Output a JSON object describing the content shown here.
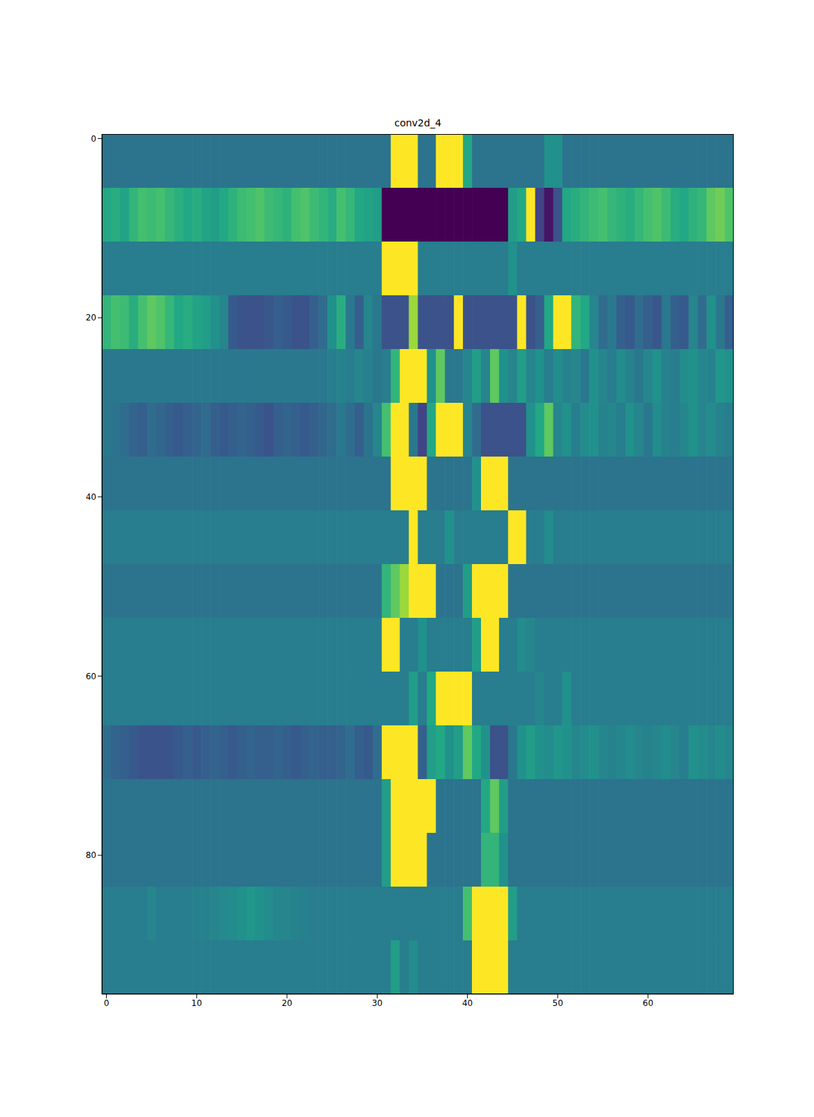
{
  "chart_data": {
    "type": "heatmap",
    "title": "conv2d_4",
    "color": "viridis",
    "xlim": [
      -0.5,
      69.5
    ],
    "ylim": [
      95.5,
      -0.5
    ],
    "xticks": [
      0,
      10,
      20,
      30,
      40,
      50,
      60
    ],
    "yticks": [
      0,
      20,
      40,
      60,
      80
    ],
    "x": [
      0,
      1,
      2,
      3,
      4,
      5,
      6,
      7,
      8,
      9,
      10,
      11,
      12,
      13,
      14,
      15,
      16,
      17,
      18,
      19,
      20,
      21,
      22,
      23,
      24,
      25,
      26,
      27,
      28,
      29,
      30,
      31,
      32,
      33,
      34,
      35,
      36,
      37,
      38,
      39,
      40,
      41,
      42,
      43,
      44,
      45,
      46,
      47,
      48,
      49,
      50,
      51,
      52,
      53,
      54,
      55,
      56,
      57,
      58,
      59,
      60,
      61,
      62,
      63,
      64,
      65,
      66,
      67,
      68,
      69
    ],
    "row_edges": [
      -0.5,
      5.5,
      11.5,
      17.5,
      23.5,
      29.5,
      35.5,
      41.5,
      47.5,
      53.5,
      59.5,
      65.5,
      71.5,
      77.5,
      83.5,
      89.5,
      95.5
    ],
    "cells": [
      [
        0.38,
        0.38,
        0.38,
        0.38,
        0.38,
        0.38,
        0.38,
        0.38,
        0.38,
        0.38,
        0.38,
        0.38,
        0.38,
        0.38,
        0.38,
        0.38,
        0.38,
        0.38,
        0.38,
        0.38,
        0.38,
        0.38,
        0.38,
        0.38,
        0.38,
        0.38,
        0.38,
        0.38,
        0.38,
        0.38,
        0.38,
        0.38,
        1,
        1,
        1,
        0.38,
        0.38,
        1,
        1,
        1,
        0.6,
        0.38,
        0.38,
        0.38,
        0.38,
        0.38,
        0.38,
        0.38,
        0.38,
        0.5,
        0.5,
        0.38,
        0.38,
        0.38,
        0.38,
        0.38,
        0.38,
        0.38,
        0.38,
        0.38,
        0.38,
        0.38,
        0.38,
        0.38,
        0.38,
        0.38,
        0.38,
        0.38,
        0.38,
        0.38
      ],
      [
        0.6,
        0.62,
        0.58,
        0.65,
        0.7,
        0.68,
        0.7,
        0.66,
        0.63,
        0.6,
        0.62,
        0.58,
        0.55,
        0.6,
        0.64,
        0.68,
        0.7,
        0.72,
        0.68,
        0.66,
        0.64,
        0.7,
        0.72,
        0.68,
        0.65,
        0.62,
        0.7,
        0.66,
        0.6,
        0.58,
        0.55,
        0,
        0,
        0,
        0,
        0,
        0,
        0,
        0,
        0,
        0,
        0,
        0,
        0,
        0,
        0.55,
        0.6,
        1,
        0.2,
        0.05,
        0.25,
        0.6,
        0.62,
        0.65,
        0.68,
        0.7,
        0.66,
        0.64,
        0.62,
        0.66,
        0.7,
        0.72,
        0.68,
        0.62,
        0.6,
        0.64,
        0.66,
        0.75,
        0.78,
        0.72
      ],
      [
        0.42,
        0.42,
        0.42,
        0.42,
        0.42,
        0.42,
        0.42,
        0.42,
        0.42,
        0.42,
        0.42,
        0.42,
        0.42,
        0.42,
        0.42,
        0.42,
        0.42,
        0.42,
        0.42,
        0.42,
        0.42,
        0.42,
        0.42,
        0.42,
        0.42,
        0.42,
        0.42,
        0.42,
        0.42,
        0.42,
        0.42,
        1,
        1,
        1,
        1,
        0.42,
        0.42,
        0.42,
        0.42,
        0.42,
        0.42,
        0.42,
        0.42,
        0.42,
        0.42,
        0.5,
        0.42,
        0.42,
        0.42,
        0.42,
        0.42,
        0.42,
        0.42,
        0.42,
        0.42,
        0.42,
        0.42,
        0.42,
        0.42,
        0.42,
        0.42,
        0.42,
        0.42,
        0.42,
        0.42,
        0.42,
        0.42,
        0.42,
        0.42,
        0.42
      ],
      [
        0.65,
        0.7,
        0.68,
        0.62,
        0.7,
        0.75,
        0.72,
        0.66,
        0.6,
        0.62,
        0.58,
        0.55,
        0.5,
        0.45,
        0.28,
        0.26,
        0.25,
        0.25,
        0.27,
        0.3,
        0.28,
        0.26,
        0.25,
        0.3,
        0.35,
        0.5,
        0.62,
        0.4,
        0.3,
        0.45,
        0.4,
        0.25,
        0.25,
        0.25,
        0.85,
        0.25,
        0.25,
        0.25,
        0.25,
        1,
        0.25,
        0.25,
        0.25,
        0.25,
        0.25,
        0.25,
        1,
        0.25,
        0.3,
        0.6,
        1,
        1,
        0.65,
        0.6,
        0.45,
        0.35,
        0.4,
        0.3,
        0.28,
        0.35,
        0.3,
        0.27,
        0.4,
        0.3,
        0.28,
        0.45,
        0.35,
        0.5,
        0.4,
        0.3
      ],
      [
        0.4,
        0.4,
        0.4,
        0.4,
        0.4,
        0.4,
        0.4,
        0.4,
        0.4,
        0.4,
        0.4,
        0.4,
        0.4,
        0.4,
        0.4,
        0.4,
        0.4,
        0.4,
        0.4,
        0.4,
        0.4,
        0.4,
        0.4,
        0.4,
        0.4,
        0.42,
        0.44,
        0.42,
        0.45,
        0.43,
        0.4,
        0.42,
        0.65,
        1,
        1,
        1,
        0.5,
        0.75,
        0.4,
        0.4,
        0.45,
        0.55,
        0.45,
        0.75,
        0.5,
        0.45,
        0.55,
        0.45,
        0.5,
        0.42,
        0.48,
        0.44,
        0.46,
        0.4,
        0.5,
        0.45,
        0.42,
        0.48,
        0.44,
        0.4,
        0.46,
        0.5,
        0.44,
        0.42,
        0.48,
        0.5,
        0.46,
        0.44,
        0.52,
        0.5
      ],
      [
        0.4,
        0.38,
        0.35,
        0.32,
        0.3,
        0.35,
        0.33,
        0.3,
        0.28,
        0.3,
        0.32,
        0.35,
        0.3,
        0.28,
        0.3,
        0.32,
        0.3,
        0.28,
        0.26,
        0.3,
        0.32,
        0.3,
        0.28,
        0.3,
        0.33,
        0.35,
        0.4,
        0.35,
        0.3,
        0.38,
        0.45,
        0.7,
        1,
        1,
        0.4,
        0.2,
        0.6,
        1,
        1,
        1,
        0.45,
        0.35,
        0.25,
        0.25,
        0.25,
        0.25,
        0.25,
        0.5,
        0.6,
        0.75,
        0.45,
        0.5,
        0.42,
        0.48,
        0.5,
        0.44,
        0.46,
        0.42,
        0.5,
        0.45,
        0.4,
        0.48,
        0.44,
        0.42,
        0.46,
        0.5,
        0.45,
        0.48,
        0.44,
        0.42
      ],
      [
        0.38,
        0.38,
        0.38,
        0.38,
        0.38,
        0.38,
        0.38,
        0.38,
        0.38,
        0.38,
        0.38,
        0.38,
        0.38,
        0.38,
        0.38,
        0.38,
        0.38,
        0.38,
        0.38,
        0.38,
        0.38,
        0.38,
        0.38,
        0.38,
        0.38,
        0.38,
        0.38,
        0.38,
        0.38,
        0.38,
        0.38,
        0.38,
        1,
        1,
        1,
        1,
        0.38,
        0.38,
        0.38,
        0.38,
        0.38,
        0.5,
        1,
        1,
        1,
        0.38,
        0.38,
        0.38,
        0.38,
        0.38,
        0.38,
        0.38,
        0.38,
        0.38,
        0.38,
        0.38,
        0.38,
        0.38,
        0.38,
        0.38,
        0.38,
        0.38,
        0.38,
        0.38,
        0.38,
        0.38,
        0.38,
        0.38,
        0.38,
        0.38
      ],
      [
        0.42,
        0.42,
        0.42,
        0.42,
        0.42,
        0.42,
        0.42,
        0.42,
        0.42,
        0.42,
        0.42,
        0.42,
        0.42,
        0.42,
        0.42,
        0.42,
        0.42,
        0.42,
        0.42,
        0.42,
        0.42,
        0.42,
        0.42,
        0.42,
        0.42,
        0.42,
        0.42,
        0.42,
        0.42,
        0.42,
        0.42,
        0.42,
        0.42,
        0.42,
        1,
        0.42,
        0.42,
        0.42,
        0.5,
        0.42,
        0.42,
        0.42,
        0.42,
        0.42,
        0.42,
        1,
        1,
        0.42,
        0.42,
        0.48,
        0.42,
        0.42,
        0.42,
        0.42,
        0.42,
        0.42,
        0.42,
        0.42,
        0.42,
        0.42,
        0.42,
        0.42,
        0.42,
        0.42,
        0.42,
        0.42,
        0.42,
        0.42,
        0.42,
        0.42
      ],
      [
        0.38,
        0.38,
        0.38,
        0.38,
        0.38,
        0.38,
        0.38,
        0.38,
        0.38,
        0.38,
        0.38,
        0.38,
        0.38,
        0.38,
        0.38,
        0.38,
        0.38,
        0.38,
        0.38,
        0.38,
        0.38,
        0.38,
        0.38,
        0.38,
        0.38,
        0.38,
        0.38,
        0.38,
        0.38,
        0.38,
        0.38,
        0.65,
        0.75,
        0.85,
        1,
        1,
        1,
        0.38,
        0.38,
        0.38,
        0.55,
        1,
        1,
        1,
        1,
        0.38,
        0.38,
        0.38,
        0.38,
        0.38,
        0.38,
        0.38,
        0.38,
        0.38,
        0.38,
        0.38,
        0.38,
        0.38,
        0.38,
        0.38,
        0.38,
        0.38,
        0.38,
        0.38,
        0.38,
        0.38,
        0.38,
        0.38,
        0.38,
        0.38
      ],
      [
        0.42,
        0.42,
        0.42,
        0.42,
        0.42,
        0.42,
        0.42,
        0.42,
        0.42,
        0.42,
        0.42,
        0.42,
        0.42,
        0.42,
        0.42,
        0.42,
        0.42,
        0.42,
        0.42,
        0.42,
        0.42,
        0.42,
        0.42,
        0.42,
        0.42,
        0.42,
        0.42,
        0.42,
        0.42,
        0.42,
        0.42,
        1,
        1,
        0.42,
        0.42,
        0.5,
        0.42,
        0.42,
        0.42,
        0.42,
        0.42,
        0.55,
        1,
        1,
        0.42,
        0.42,
        0.48,
        0.45,
        0.42,
        0.42,
        0.42,
        0.42,
        0.42,
        0.42,
        0.42,
        0.42,
        0.42,
        0.42,
        0.42,
        0.42,
        0.42,
        0.42,
        0.42,
        0.42,
        0.42,
        0.42,
        0.42,
        0.42,
        0.42,
        0.42
      ],
      [
        0.42,
        0.42,
        0.42,
        0.42,
        0.42,
        0.42,
        0.42,
        0.42,
        0.42,
        0.42,
        0.42,
        0.42,
        0.42,
        0.42,
        0.42,
        0.42,
        0.42,
        0.42,
        0.42,
        0.42,
        0.42,
        0.42,
        0.42,
        0.42,
        0.42,
        0.42,
        0.42,
        0.42,
        0.42,
        0.42,
        0.42,
        0.42,
        0.42,
        0.42,
        0.55,
        0.42,
        0.6,
        1,
        1,
        1,
        1,
        0.42,
        0.42,
        0.42,
        0.42,
        0.42,
        0.42,
        0.42,
        0.46,
        0.42,
        0.42,
        0.5,
        0.42,
        0.42,
        0.42,
        0.42,
        0.42,
        0.42,
        0.42,
        0.42,
        0.42,
        0.42,
        0.42,
        0.42,
        0.42,
        0.42,
        0.42,
        0.42,
        0.42,
        0.42
      ],
      [
        0.35,
        0.32,
        0.3,
        0.28,
        0.26,
        0.25,
        0.25,
        0.26,
        0.28,
        0.3,
        0.28,
        0.3,
        0.32,
        0.3,
        0.28,
        0.3,
        0.32,
        0.3,
        0.3,
        0.32,
        0.3,
        0.28,
        0.3,
        0.32,
        0.3,
        0.3,
        0.32,
        0.35,
        0.3,
        0.28,
        0.35,
        1,
        1,
        1,
        1,
        0.3,
        0.55,
        0.6,
        0.5,
        0.55,
        0.75,
        0.6,
        0.5,
        0.25,
        0.25,
        0.4,
        0.5,
        0.55,
        0.5,
        0.48,
        0.52,
        0.5,
        0.46,
        0.48,
        0.5,
        0.46,
        0.44,
        0.46,
        0.48,
        0.45,
        0.44,
        0.46,
        0.48,
        0.45,
        0.42,
        0.5,
        0.48,
        0.46,
        0.48,
        0.45
      ],
      [
        0.38,
        0.38,
        0.38,
        0.38,
        0.38,
        0.38,
        0.38,
        0.38,
        0.38,
        0.38,
        0.38,
        0.38,
        0.38,
        0.38,
        0.38,
        0.38,
        0.38,
        0.38,
        0.38,
        0.38,
        0.38,
        0.38,
        0.38,
        0.38,
        0.38,
        0.38,
        0.38,
        0.38,
        0.38,
        0.38,
        0.38,
        0.55,
        1,
        1,
        1,
        1,
        1,
        0.38,
        0.38,
        0.38,
        0.38,
        0.38,
        0.6,
        0.75,
        0.55,
        0.38,
        0.38,
        0.38,
        0.38,
        0.38,
        0.38,
        0.38,
        0.38,
        0.38,
        0.38,
        0.38,
        0.38,
        0.38,
        0.38,
        0.38,
        0.38,
        0.38,
        0.38,
        0.38,
        0.38,
        0.38,
        0.38,
        0.38,
        0.38,
        0.38
      ],
      [
        0.38,
        0.38,
        0.38,
        0.38,
        0.38,
        0.38,
        0.38,
        0.38,
        0.38,
        0.38,
        0.38,
        0.38,
        0.38,
        0.38,
        0.38,
        0.38,
        0.38,
        0.38,
        0.38,
        0.38,
        0.38,
        0.38,
        0.38,
        0.38,
        0.38,
        0.38,
        0.38,
        0.38,
        0.38,
        0.38,
        0.38,
        0.55,
        1,
        1,
        1,
        1,
        0.38,
        0.38,
        0.38,
        0.38,
        0.38,
        0.38,
        0.65,
        0.65,
        0.5,
        0.38,
        0.38,
        0.38,
        0.38,
        0.38,
        0.38,
        0.38,
        0.38,
        0.38,
        0.38,
        0.38,
        0.38,
        0.38,
        0.38,
        0.38,
        0.38,
        0.38,
        0.38,
        0.38,
        0.38,
        0.38,
        0.38,
        0.38,
        0.38,
        0.38
      ],
      [
        0.42,
        0.42,
        0.42,
        0.42,
        0.42,
        0.45,
        0.42,
        0.42,
        0.42,
        0.42,
        0.43,
        0.44,
        0.45,
        0.47,
        0.48,
        0.5,
        0.52,
        0.5,
        0.48,
        0.46,
        0.45,
        0.44,
        0.43,
        0.42,
        0.42,
        0.42,
        0.42,
        0.42,
        0.42,
        0.42,
        0.42,
        0.42,
        0.42,
        0.42,
        0.42,
        0.42,
        0.42,
        0.42,
        0.42,
        0.42,
        0.7,
        1,
        1,
        1,
        1,
        0.55,
        0.42,
        0.42,
        0.42,
        0.42,
        0.42,
        0.42,
        0.42,
        0.42,
        0.42,
        0.42,
        0.42,
        0.42,
        0.42,
        0.42,
        0.42,
        0.42,
        0.42,
        0.42,
        0.42,
        0.42,
        0.42,
        0.42,
        0.42,
        0.42
      ],
      [
        0.42,
        0.42,
        0.42,
        0.42,
        0.42,
        0.42,
        0.42,
        0.42,
        0.42,
        0.42,
        0.42,
        0.42,
        0.42,
        0.42,
        0.42,
        0.42,
        0.42,
        0.42,
        0.42,
        0.42,
        0.42,
        0.42,
        0.42,
        0.42,
        0.42,
        0.42,
        0.42,
        0.42,
        0.42,
        0.42,
        0.42,
        0.42,
        0.55,
        0.42,
        0.48,
        0.42,
        0.42,
        0.42,
        0.42,
        0.42,
        0.42,
        1,
        1,
        1,
        1,
        0.42,
        0.42,
        0.42,
        0.42,
        0.42,
        0.42,
        0.42,
        0.42,
        0.42,
        0.42,
        0.42,
        0.42,
        0.42,
        0.42,
        0.42,
        0.42,
        0.42,
        0.42,
        0.42,
        0.42,
        0.42,
        0.42,
        0.42,
        0.42,
        0.42
      ]
    ]
  }
}
